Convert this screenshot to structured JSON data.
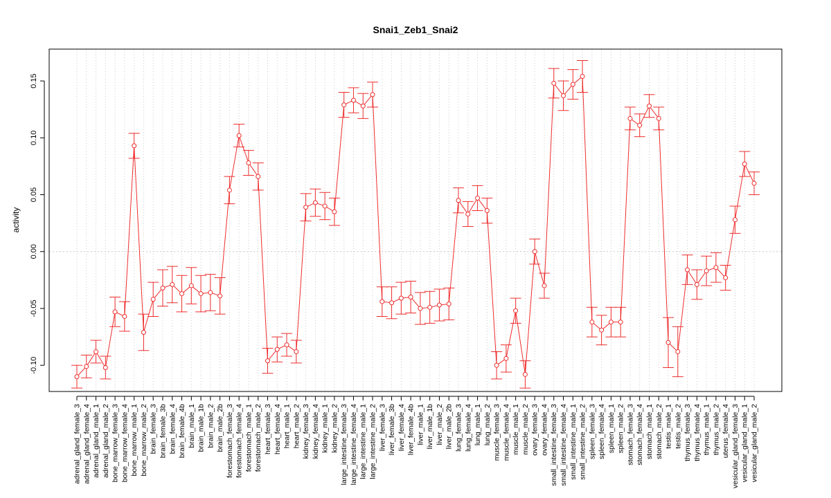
{
  "chart_data": {
    "type": "line",
    "title": "Snai1_Zeb1_Snai2",
    "xlabel": "",
    "ylabel": "activity",
    "ylim": [
      -0.123,
      0.178
    ],
    "yticks": [
      -0.1,
      -0.05,
      0.0,
      0.05,
      0.1,
      0.15
    ],
    "ytick_labels": [
      "-0.10",
      "-0.05",
      "0.00",
      "0.05",
      "0.10",
      "0.15"
    ],
    "grid": true,
    "line_color": "#ee2c2c",
    "grid_color": "#c8c8c8",
    "categories": [
      "adrenal_gland_female_3",
      "adrenal_gland_female_4",
      "adrenal_gland_male_1",
      "adrenal_gland_male_2",
      "bone_marrow_female_3",
      "bone_marrow_female_4",
      "bone_marrow_male_1",
      "bone_marrow_male_2",
      "brain_female_3",
      "brain_female_3b",
      "brain_female_4",
      "brain_female_4b",
      "brain_male_1",
      "brain_male_1b",
      "brain_male_2",
      "brain_male_2b",
      "forestomach_female_3",
      "forestomach_female_4",
      "forestomach_male_1",
      "forestomach_male_2",
      "heart_female_3",
      "heart_female_4",
      "heart_male_1",
      "heart_male_2",
      "kidney_female_3",
      "kidney_female_4",
      "kidney_male_1",
      "kidney_male_2",
      "large_intestine_female_3",
      "large_intestine_female_4",
      "large_intestine_male_1",
      "large_intestine_male_2",
      "liver_female_3",
      "liver_female_3b",
      "liver_female_4",
      "liver_female_4b",
      "liver_male_1",
      "liver_male_1b",
      "liver_male_2",
      "liver_male_2b",
      "lung_female_3",
      "lung_female_4",
      "lung_male_1",
      "lung_male_2",
      "muscle_female_3",
      "muscle_female_4",
      "muscle_male_1",
      "muscle_male_2",
      "ovary_female_3",
      "ovary_female_4",
      "small_intestine_female_3",
      "small_intestine_female_4",
      "small_intestine_male_1",
      "small_intestine_male_2",
      "spleen_female_3",
      "spleen_female_4",
      "spleen_male_1",
      "spleen_male_2",
      "stomach_female_3",
      "stomach_female_4",
      "stomach_male_1",
      "stomach_male_2",
      "testis_male_1",
      "testis_male_2",
      "thymus_female_3",
      "thymus_female_4",
      "thymus_male_1",
      "thymus_male_2",
      "uterus_female_4",
      "vesicular_gland_female_3",
      "vesicular_gland_male_1",
      "vesicular_gland_male_2"
    ],
    "values": [
      -0.11,
      -0.101,
      -0.088,
      -0.102,
      -0.053,
      -0.057,
      0.093,
      -0.071,
      -0.042,
      -0.032,
      -0.029,
      -0.037,
      -0.03,
      -0.037,
      -0.036,
      -0.039,
      0.054,
      0.102,
      0.078,
      0.066,
      -0.096,
      -0.086,
      -0.082,
      -0.088,
      0.039,
      0.043,
      0.04,
      0.035,
      0.129,
      0.133,
      0.128,
      0.138,
      -0.044,
      -0.045,
      -0.041,
      -0.04,
      -0.05,
      -0.049,
      -0.047,
      -0.046,
      0.045,
      0.033,
      0.047,
      0.036,
      -0.1,
      -0.094,
      -0.052,
      -0.108,
      0.0,
      -0.03,
      0.148,
      0.137,
      0.147,
      0.154,
      -0.062,
      -0.069,
      -0.062,
      -0.062,
      0.117,
      0.111,
      0.128,
      0.117,
      -0.08,
      -0.088,
      -0.016,
      -0.029,
      -0.017,
      -0.014,
      -0.023,
      0.028,
      0.077,
      0.06
    ],
    "error": [
      0.01,
      0.01,
      0.01,
      0.01,
      0.013,
      0.013,
      0.011,
      0.016,
      0.015,
      0.016,
      0.016,
      0.016,
      0.016,
      0.016,
      0.016,
      0.016,
      0.012,
      0.01,
      0.011,
      0.012,
      0.011,
      0.011,
      0.01,
      0.01,
      0.012,
      0.012,
      0.012,
      0.012,
      0.011,
      0.011,
      0.011,
      0.011,
      0.013,
      0.014,
      0.014,
      0.014,
      0.014,
      0.014,
      0.014,
      0.014,
      0.011,
      0.011,
      0.011,
      0.011,
      0.012,
      0.012,
      0.011,
      0.012,
      0.011,
      0.011,
      0.013,
      0.013,
      0.013,
      0.014,
      0.013,
      0.013,
      0.013,
      0.013,
      0.01,
      0.01,
      0.01,
      0.01,
      0.022,
      0.022,
      0.013,
      0.013,
      0.013,
      0.013,
      0.011,
      0.012,
      0.011,
      0.01
    ]
  }
}
